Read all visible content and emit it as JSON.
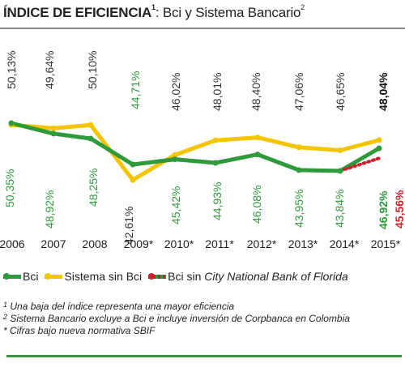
{
  "header": {
    "title_bold": "ÍNDICE DE EFICIENCIA",
    "title_bold_sup": "1",
    "title_rest": ": Bci y Sistema Bancario",
    "title_rest_sup": "2"
  },
  "legend": {
    "bci": "Bci",
    "sistema": "Sistema sin Bci",
    "city_prefix": "Bci sin ",
    "city_italic": "City National Bank of Florida"
  },
  "notes": [
    {
      "sup": "1",
      "text": "Una baja del índice representa una mayor eficiencia"
    },
    {
      "sup": "2",
      "text": "Sistema Bancario excluye a Bci e incluye inversión de Corpbanca en Colombia"
    },
    {
      "sup": "",
      "text": "* Cifras bajo nueva normativa SBIF"
    }
  ],
  "colors": {
    "bci": "#2f9a3c",
    "sistema": "#f5c400",
    "city": "#d01f2d",
    "sistema_label": "#333333"
  },
  "chart_data": {
    "type": "line",
    "categories": [
      "2006",
      "2007",
      "2008",
      "2009*",
      "2010*",
      "2011*",
      "2012*",
      "2013*",
      "2014*",
      "2015*"
    ],
    "series": [
      {
        "name": "Bci",
        "values": [
          50.35,
          48.92,
          48.25,
          44.71,
          45.42,
          44.93,
          46.08,
          43.95,
          43.84,
          46.92
        ],
        "labels": [
          "50,35%",
          "48,92%",
          "48,25%",
          "44,71%",
          "45,42%",
          "44,93%",
          "46,08%",
          "43,95%",
          "43,84%",
          "46,92%"
        ]
      },
      {
        "name": "Sistema sin Bci",
        "values": [
          50.13,
          49.64,
          50.1,
          42.61,
          46.02,
          48.01,
          48.4,
          47.06,
          46.65,
          48.04
        ],
        "labels": [
          "50,13%",
          "49,64%",
          "50,10%",
          "42,61%",
          "46,02%",
          "48,01%",
          "48,40%",
          "47,06%",
          "46,65%",
          "48,04%"
        ]
      },
      {
        "name": "Bci sin City National Bank of Florida",
        "values": [
          null,
          null,
          null,
          null,
          null,
          null,
          null,
          null,
          43.84,
          45.56
        ],
        "labels": [
          null,
          null,
          null,
          null,
          null,
          null,
          null,
          null,
          null,
          "45,56%"
        ]
      }
    ]
  }
}
